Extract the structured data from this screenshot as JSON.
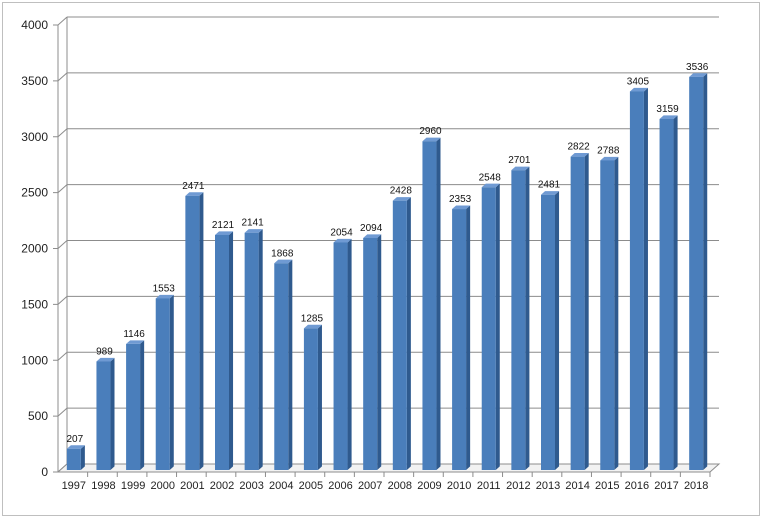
{
  "chart_data": {
    "type": "bar",
    "style": "3d-column",
    "categories": [
      "1997",
      "1998",
      "1999",
      "2000",
      "2001",
      "2002",
      "2003",
      "2004",
      "2005",
      "2006",
      "2007",
      "2008",
      "2009",
      "2010",
      "2011",
      "2012",
      "2013",
      "2014",
      "2015",
      "2016",
      "2017",
      "2018"
    ],
    "values": [
      207,
      989,
      1146,
      1553,
      2471,
      2121,
      2141,
      1868,
      1285,
      2054,
      2094,
      2428,
      2960,
      2353,
      2548,
      2701,
      2481,
      2822,
      2788,
      3405,
      3159,
      3536
    ],
    "data_labels": [
      "207",
      "989",
      "1146",
      "1553",
      "2471",
      "2121",
      "2141",
      "1868",
      "1285",
      "2054",
      "2094",
      "2428",
      "2960",
      "2353",
      "2548",
      "2701",
      "2481",
      "2822",
      "2788",
      "3405",
      "3159",
      "3536"
    ],
    "y_ticks": [
      "0",
      "500",
      "1000",
      "1500",
      "2000",
      "2500",
      "3000",
      "3500",
      "4000"
    ],
    "ylim": [
      0,
      4000
    ],
    "grid": true,
    "legend": "none",
    "colors": {
      "bar_front": "#4a7ebb",
      "bar_side": "#2f5a8e",
      "bar_top": "#6f9ad3",
      "grid": "#8c8c8c"
    }
  }
}
